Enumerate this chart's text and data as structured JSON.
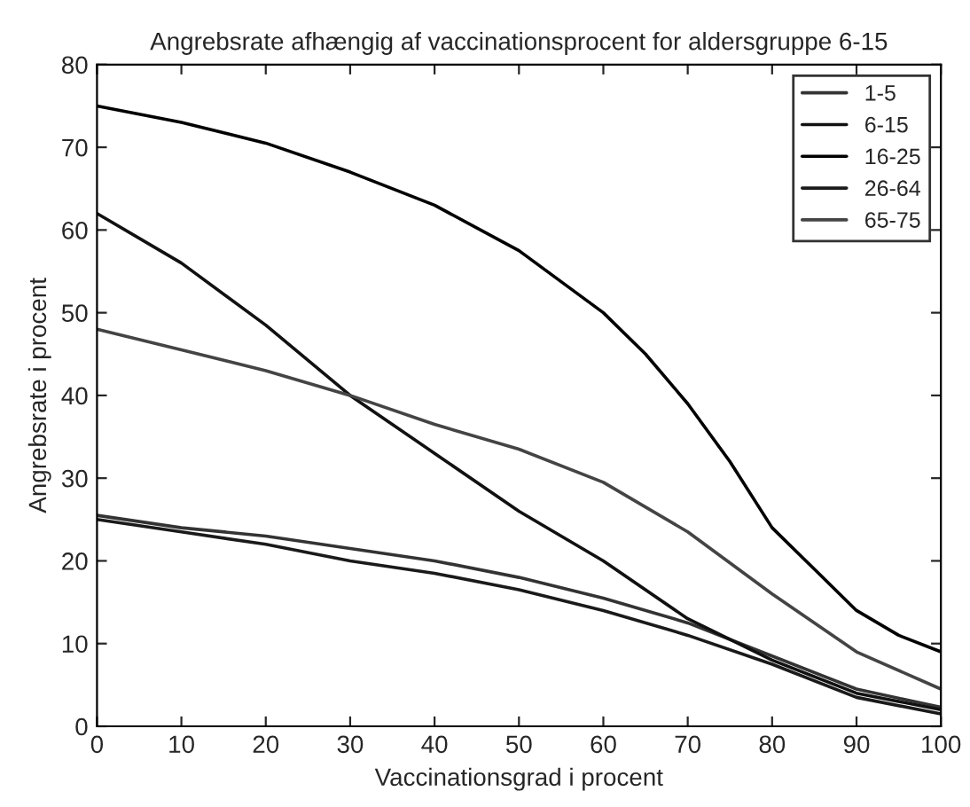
{
  "chart_data": {
    "type": "line",
    "title": "Angrebsrate afhængig af vaccinationsprocent for aldersgruppe 6-15",
    "xlabel": "Vaccinationsgrad i procent",
    "ylabel": "Angrebsrate i procent",
    "x": [
      0,
      10,
      20,
      30,
      40,
      50,
      60,
      70,
      80,
      90,
      100
    ],
    "series": [
      {
        "name": "1-5",
        "color": "#333333",
        "values": [
          25.5,
          24,
          23,
          21.5,
          20,
          18,
          15.5,
          12.5,
          8.5,
          4.5,
          2.3
        ]
      },
      {
        "name": "6-15",
        "color": "#111111",
        "values": [
          62,
          56,
          48.5,
          40,
          33,
          26,
          20,
          13,
          8,
          4,
          2
        ]
      },
      {
        "name": "16-25",
        "color": "#000000",
        "x": [
          0,
          10,
          20,
          30,
          40,
          50,
          60,
          65,
          70,
          75,
          80,
          85,
          90,
          95,
          100
        ],
        "values": [
          75,
          73,
          70.5,
          67,
          63,
          57.5,
          50,
          45,
          39,
          32,
          24,
          19,
          14,
          11,
          9
        ]
      },
      {
        "name": "26-64",
        "color": "#1a1a1a",
        "values": [
          25,
          23.5,
          22,
          20,
          18.5,
          16.5,
          14,
          11,
          7.5,
          3.5,
          1.5
        ]
      },
      {
        "name": "65-75",
        "color": "#444444",
        "values": [
          48,
          45.5,
          43,
          40,
          36.5,
          33.5,
          29.5,
          23.5,
          16,
          9,
          4.5
        ]
      }
    ],
    "xlim": [
      0,
      100
    ],
    "ylim": [
      0,
      80
    ],
    "xticks": [
      0,
      10,
      20,
      30,
      40,
      50,
      60,
      70,
      80,
      90,
      100
    ],
    "yticks": [
      0,
      10,
      20,
      30,
      40,
      50,
      60,
      70,
      80
    ],
    "grid": false,
    "legend": "top right",
    "line_style": "solid",
    "marker": "none"
  }
}
